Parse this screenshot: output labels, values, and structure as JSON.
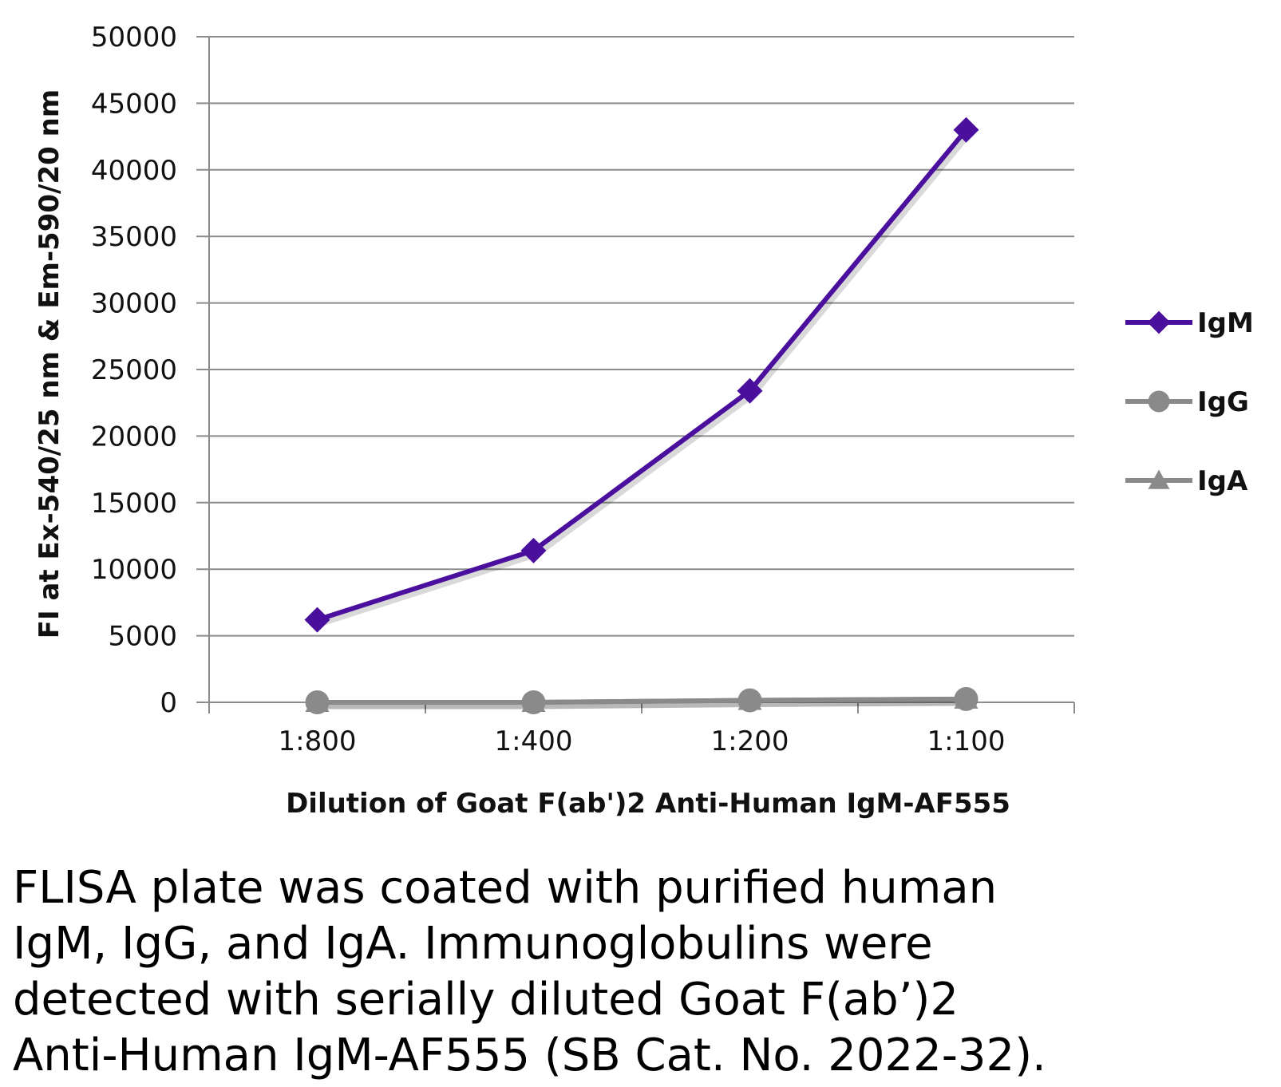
{
  "chart_data": {
    "type": "line",
    "title": "",
    "categories": [
      "1:800",
      "1:400",
      "1:200",
      "1:100"
    ],
    "xlabel": "Dilution of Goat F(ab')2 Anti-Human IgM-AF555",
    "ylabel": "FI at Ex-540/25 nm & Em-590/20 nm",
    "ylim": [
      0,
      50000
    ],
    "yticks": [
      "0",
      "5000",
      "10000",
      "15000",
      "20000",
      "25000",
      "30000",
      "35000",
      "40000",
      "45000",
      "50000"
    ],
    "grid": true,
    "legend_position": "right",
    "series": [
      {
        "name": "IgM",
        "values": [
          6200,
          11400,
          23400,
          43000
        ],
        "color": "#4b0f9e",
        "marker": "diamond"
      },
      {
        "name": "IgG",
        "values": [
          0,
          0,
          150,
          250
        ],
        "color": "#8a8a8a",
        "marker": "circle"
      },
      {
        "name": "IgA",
        "values": [
          0,
          0,
          150,
          250
        ],
        "color": "#8a8a8a",
        "marker": "triangle"
      }
    ]
  },
  "caption": {
    "lines": [
      "FLISA plate was coated with purified human",
      "IgM, IgG, and IgA.  Immunoglobulins were",
      "detected with serially diluted Goat F(ab’)2",
      "Anti-Human IgM-AF555 (SB Cat. No. 2022-32)."
    ]
  }
}
